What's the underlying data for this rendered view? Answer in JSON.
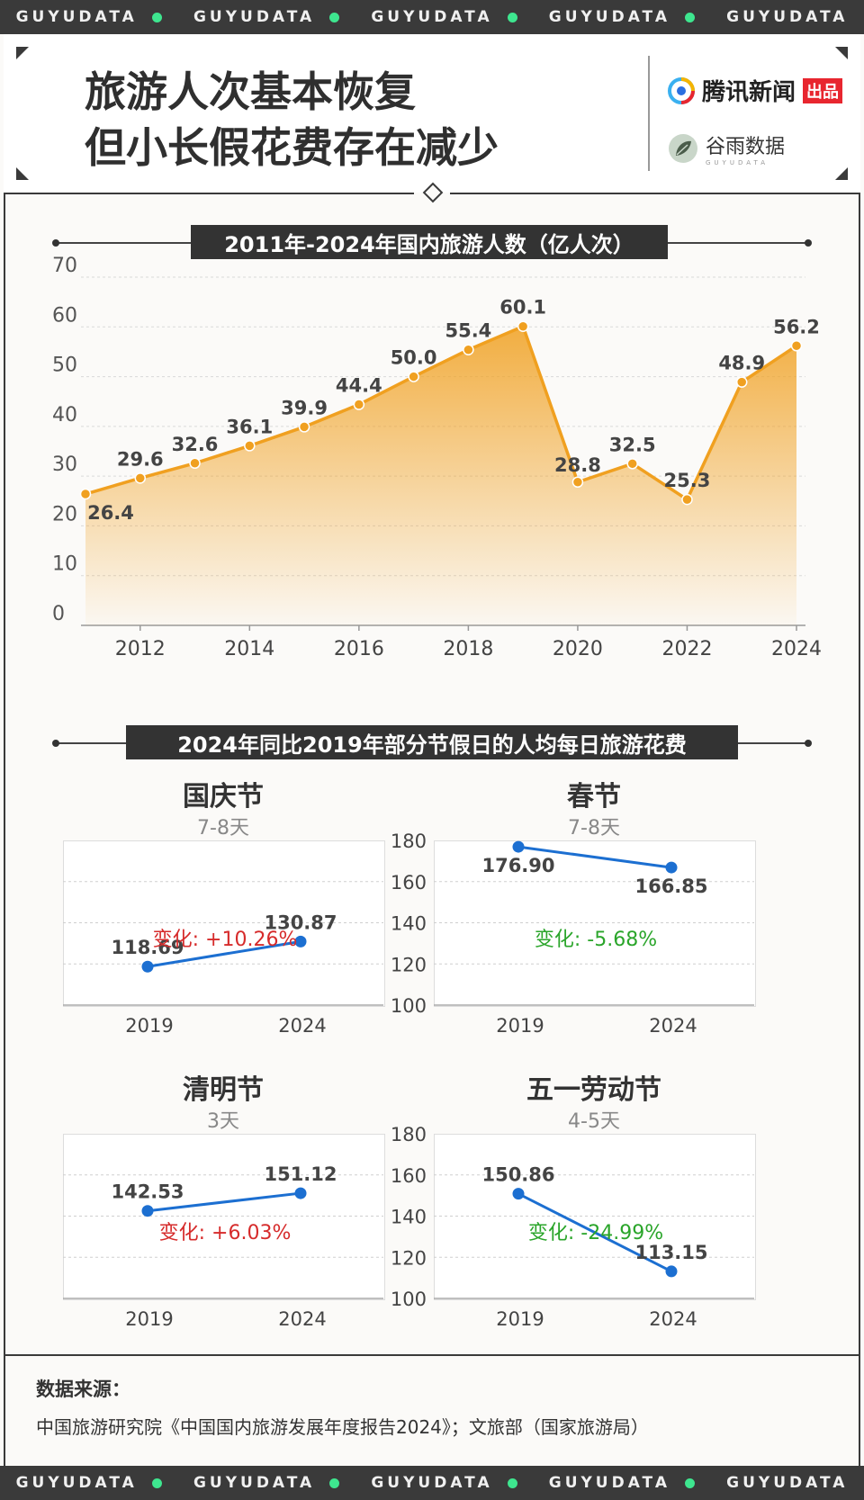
{
  "brand": {
    "band_text": "GUYUDATA",
    "accent": "#3ee68f",
    "tencent_name": "腾讯新闻",
    "tencent_badge": "出品",
    "guyu_name": "谷雨数据",
    "guyu_sub": "GUYUDATA"
  },
  "header": {
    "title_line1": "旅游人次基本恢复",
    "title_line2": "但小长假花费存在减少"
  },
  "section1": {
    "title": "2011年-2024年国内旅游人数（亿人次）"
  },
  "section2": {
    "title": "2024年同比2019年部分节假日的人均每日旅游花费"
  },
  "chart_data": [
    {
      "type": "area",
      "title": "2011年-2024年国内旅游人数（亿人次）",
      "x": [
        2011,
        2012,
        2013,
        2014,
        2015,
        2016,
        2017,
        2018,
        2019,
        2020,
        2021,
        2022,
        2023,
        2024
      ],
      "values": [
        26.4,
        29.6,
        32.6,
        36.1,
        39.9,
        44.4,
        50.0,
        55.4,
        60.1,
        28.8,
        32.5,
        25.3,
        48.9,
        56.2
      ],
      "labels": [
        "26.4",
        "29.6",
        "32.6",
        "36.1",
        "39.9",
        "44.4",
        "50.0",
        "55.4",
        "60.1",
        "28.8",
        "32.5",
        "25.3",
        "48.9",
        "56.2"
      ],
      "xticks": [
        "2012",
        "2014",
        "2016",
        "2018",
        "2020",
        "2022",
        "2024"
      ],
      "yticks": [
        "0",
        "10",
        "20",
        "30",
        "40",
        "50",
        "60",
        "70"
      ],
      "ylim": [
        0,
        70
      ],
      "color": "#f0a020",
      "grid": true
    },
    {
      "type": "line",
      "title": "国庆节",
      "subtitle": "7-8天",
      "categories": [
        "2019",
        "2024"
      ],
      "values": [
        118.69,
        130.87
      ],
      "labels": [
        "118.69",
        "130.87"
      ],
      "change": "变化: +10.26%",
      "change_color": "#d62b2b",
      "ylim": [
        100,
        180
      ],
      "show_yticks": false
    },
    {
      "type": "line",
      "title": "春节",
      "subtitle": "7-8天",
      "categories": [
        "2019",
        "2024"
      ],
      "values": [
        176.9,
        166.85
      ],
      "labels": [
        "176.90",
        "166.85"
      ],
      "change": "变化: -5.68%",
      "change_color": "#2aa52a",
      "ylim": [
        100,
        180
      ],
      "yticks": [
        "100",
        "120",
        "140",
        "160",
        "180"
      ],
      "show_yticks": true
    },
    {
      "type": "line",
      "title": "清明节",
      "subtitle": "3天",
      "categories": [
        "2019",
        "2024"
      ],
      "values": [
        142.53,
        151.12
      ],
      "labels": [
        "142.53",
        "151.12"
      ],
      "change": "变化: +6.03%",
      "change_color": "#d62b2b",
      "ylim": [
        100,
        180
      ],
      "show_yticks": false
    },
    {
      "type": "line",
      "title": "五一劳动节",
      "subtitle": "4-5天",
      "categories": [
        "2019",
        "2024"
      ],
      "values": [
        150.86,
        113.15
      ],
      "labels": [
        "150.86",
        "113.15"
      ],
      "change": "变化: -24.99%",
      "change_color": "#2aa52a",
      "ylim": [
        100,
        180
      ],
      "yticks": [
        "100",
        "120",
        "140",
        "160",
        "180"
      ],
      "show_yticks": true
    }
  ],
  "source": {
    "label": "数据来源：",
    "text": "中国旅游研究院《中国国内旅游发展年度报告2024》；文旅部（国家旅游局）"
  }
}
